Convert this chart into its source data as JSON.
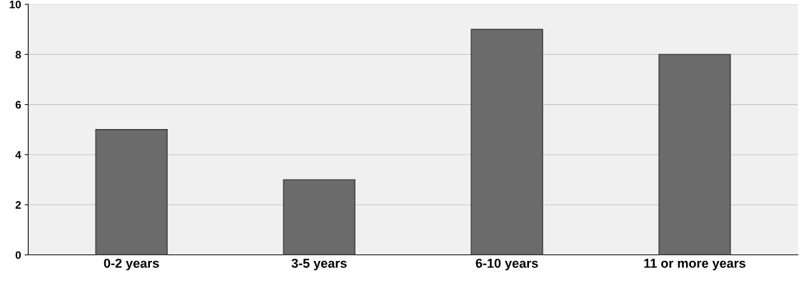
{
  "chart_data": {
    "type": "bar",
    "categories": [
      "0-2 years",
      "3-5 years",
      "6-10 years",
      "11 or more years"
    ],
    "values": [
      5,
      3,
      9,
      8
    ],
    "color": "#6b6b6b",
    "ylim": [
      0,
      10
    ],
    "yticks": [
      0,
      2,
      4,
      6,
      8,
      10
    ],
    "grid": "y"
  }
}
